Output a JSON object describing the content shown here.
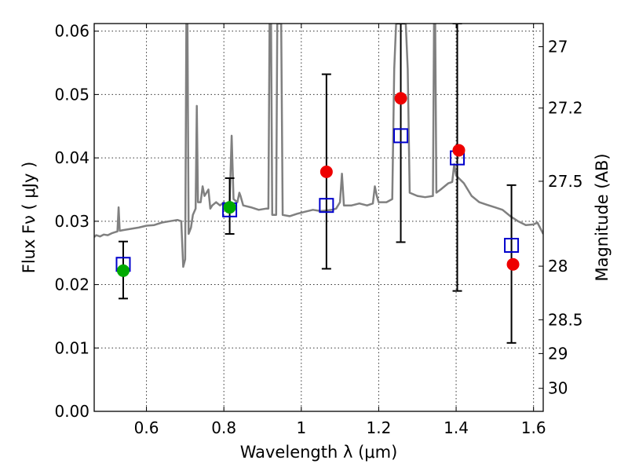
{
  "chart_data": {
    "type": "scatter",
    "xlabel": "Wavelength  λ (μm)",
    "ylabel_left": "Flux  Fν  ( μJy )",
    "ylabel_right": "Magnitude (AB)",
    "xlim": [
      0.465,
      1.625
    ],
    "ylim": [
      0.0,
      0.0612
    ],
    "grid": true,
    "x_ticks": [
      {
        "value": 0.6,
        "label": "0.6"
      },
      {
        "value": 0.8,
        "label": "0.8"
      },
      {
        "value": 1.0,
        "label": "1"
      },
      {
        "value": 1.2,
        "label": "1.2"
      },
      {
        "value": 1.4,
        "label": "1.4"
      },
      {
        "value": 1.6,
        "label": "1.6"
      }
    ],
    "y_ticks": [
      {
        "value": 0.0,
        "label": "0.00"
      },
      {
        "value": 0.01,
        "label": "0.01"
      },
      {
        "value": 0.02,
        "label": "0.02"
      },
      {
        "value": 0.03,
        "label": "0.03"
      },
      {
        "value": 0.04,
        "label": "0.04"
      },
      {
        "value": 0.05,
        "label": "0.05"
      },
      {
        "value": 0.06,
        "label": "0.06"
      }
    ],
    "right_ticks": [
      {
        "mag": 27.0,
        "label": "27"
      },
      {
        "mag": 27.2,
        "label": "27.2"
      },
      {
        "mag": 27.5,
        "label": "27.5"
      },
      {
        "mag": 28.0,
        "label": "28"
      },
      {
        "mag": 28.5,
        "label": "28.5"
      },
      {
        "mag": 29.0,
        "label": "29"
      },
      {
        "mag": 30.0,
        "label": "30"
      }
    ],
    "series": [
      {
        "kind": "model-spectrum",
        "color": "#808080",
        "points": [
          [
            0.465,
            0.0275
          ],
          [
            0.47,
            0.0278
          ],
          [
            0.48,
            0.0276
          ],
          [
            0.49,
            0.0279
          ],
          [
            0.5,
            0.0278
          ],
          [
            0.51,
            0.0281
          ],
          [
            0.52,
            0.0283
          ],
          [
            0.525,
            0.0284
          ],
          [
            0.528,
            0.0322
          ],
          [
            0.531,
            0.0285
          ],
          [
            0.54,
            0.0286
          ],
          [
            0.56,
            0.0288
          ],
          [
            0.58,
            0.029
          ],
          [
            0.6,
            0.0293
          ],
          [
            0.62,
            0.0294
          ],
          [
            0.64,
            0.0298
          ],
          [
            0.66,
            0.03
          ],
          [
            0.68,
            0.0302
          ],
          [
            0.69,
            0.03
          ],
          [
            0.695,
            0.0228
          ],
          [
            0.7,
            0.024
          ],
          [
            0.703,
            0.0612
          ],
          [
            0.706,
            0.0612
          ],
          [
            0.709,
            0.028
          ],
          [
            0.715,
            0.029
          ],
          [
            0.72,
            0.031
          ],
          [
            0.727,
            0.032
          ],
          [
            0.73,
            0.0482
          ],
          [
            0.733,
            0.033
          ],
          [
            0.74,
            0.033
          ],
          [
            0.745,
            0.0355
          ],
          [
            0.75,
            0.034
          ],
          [
            0.76,
            0.035
          ],
          [
            0.765,
            0.032
          ],
          [
            0.77,
            0.0325
          ],
          [
            0.78,
            0.033
          ],
          [
            0.79,
            0.0325
          ],
          [
            0.8,
            0.033
          ],
          [
            0.81,
            0.032
          ],
          [
            0.815,
            0.033
          ],
          [
            0.82,
            0.0435
          ],
          [
            0.825,
            0.0335
          ],
          [
            0.835,
            0.033
          ],
          [
            0.84,
            0.0345
          ],
          [
            0.843,
            0.034
          ],
          [
            0.85,
            0.0325
          ],
          [
            0.87,
            0.0322
          ],
          [
            0.89,
            0.0318
          ],
          [
            0.91,
            0.032
          ],
          [
            0.915,
            0.032
          ],
          [
            0.918,
            0.0612
          ],
          [
            0.922,
            0.0612
          ],
          [
            0.925,
            0.031
          ],
          [
            0.935,
            0.031
          ],
          [
            0.938,
            0.0612
          ],
          [
            0.948,
            0.0612
          ],
          [
            0.952,
            0.031
          ],
          [
            0.97,
            0.0308
          ],
          [
            0.99,
            0.0312
          ],
          [
            1.01,
            0.0315
          ],
          [
            1.03,
            0.0318
          ],
          [
            1.05,
            0.0316
          ],
          [
            1.08,
            0.0318
          ],
          [
            1.09,
            0.032
          ],
          [
            1.1,
            0.033
          ],
          [
            1.105,
            0.0375
          ],
          [
            1.11,
            0.0325
          ],
          [
            1.13,
            0.0325
          ],
          [
            1.15,
            0.0328
          ],
          [
            1.17,
            0.0325
          ],
          [
            1.185,
            0.0328
          ],
          [
            1.19,
            0.0355
          ],
          [
            1.195,
            0.034
          ],
          [
            1.2,
            0.033
          ],
          [
            1.22,
            0.033
          ],
          [
            1.235,
            0.0335
          ],
          [
            1.24,
            0.054
          ],
          [
            1.245,
            0.0612
          ],
          [
            1.27,
            0.0612
          ],
          [
            1.275,
            0.054
          ],
          [
            1.28,
            0.0345
          ],
          [
            1.3,
            0.034
          ],
          [
            1.32,
            0.0338
          ],
          [
            1.34,
            0.034
          ],
          [
            1.343,
            0.0612
          ],
          [
            1.346,
            0.0612
          ],
          [
            1.349,
            0.0345
          ],
          [
            1.36,
            0.035
          ],
          [
            1.38,
            0.036
          ],
          [
            1.39,
            0.0362
          ],
          [
            1.395,
            0.039
          ],
          [
            1.4,
            0.0372
          ],
          [
            1.42,
            0.036
          ],
          [
            1.44,
            0.034
          ],
          [
            1.46,
            0.033
          ],
          [
            1.48,
            0.0326
          ],
          [
            1.5,
            0.0322
          ],
          [
            1.52,
            0.0318
          ],
          [
            1.54,
            0.0308
          ],
          [
            1.56,
            0.03
          ],
          [
            1.58,
            0.0294
          ],
          [
            1.6,
            0.0295
          ],
          [
            1.61,
            0.0298
          ],
          [
            1.625,
            0.028
          ]
        ]
      },
      {
        "kind": "error-bars",
        "color": "#000000",
        "points": [
          {
            "x": 0.54,
            "lo": 0.0178,
            "hi": 0.0268
          },
          {
            "x": 0.815,
            "lo": 0.028,
            "hi": 0.0368
          },
          {
            "x": 1.065,
            "lo": 0.0225,
            "hi": 0.0532
          },
          {
            "x": 1.257,
            "lo": 0.0267,
            "hi": 0.0612
          },
          {
            "x": 1.403,
            "lo": 0.019,
            "hi": 0.0612
          },
          {
            "x": 1.543,
            "lo": 0.0108,
            "hi": 0.0357
          }
        ]
      },
      {
        "kind": "squares",
        "color": "#0000cc",
        "points": [
          [
            0.54,
            0.0232
          ],
          [
            0.815,
            0.0318
          ],
          [
            1.065,
            0.0325
          ],
          [
            1.257,
            0.0435
          ],
          [
            1.403,
            0.04
          ],
          [
            1.543,
            0.0262
          ]
        ]
      },
      {
        "kind": "circles",
        "color": "#00aa00",
        "points": [
          [
            0.54,
            0.0222
          ],
          [
            0.815,
            0.0322
          ]
        ]
      },
      {
        "kind": "circles",
        "color": "#ee0000",
        "points": [
          [
            1.065,
            0.0378
          ],
          [
            1.257,
            0.0494
          ],
          [
            1.407,
            0.0412
          ],
          [
            1.547,
            0.0232
          ]
        ]
      }
    ]
  }
}
